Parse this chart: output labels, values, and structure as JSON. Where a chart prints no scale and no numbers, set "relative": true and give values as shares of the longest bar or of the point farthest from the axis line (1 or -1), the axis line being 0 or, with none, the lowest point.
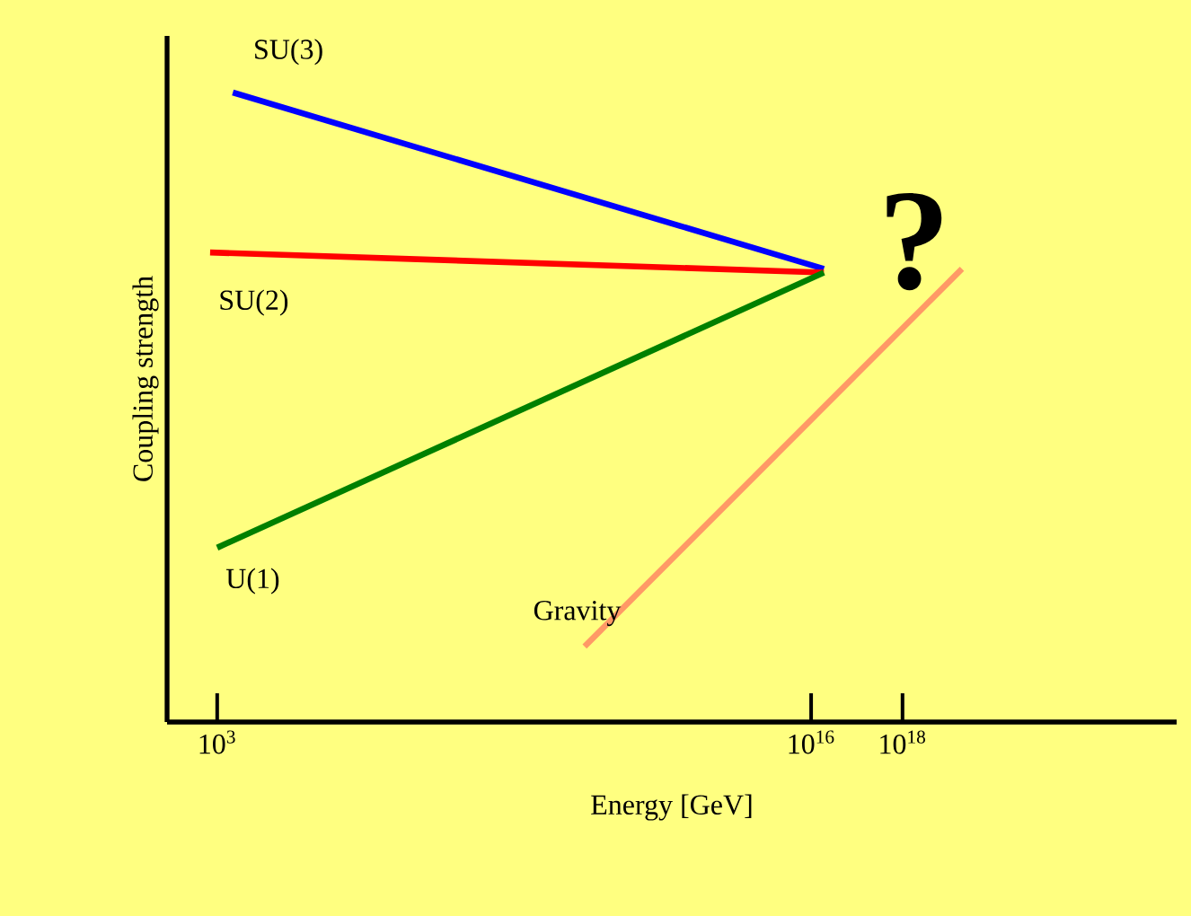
{
  "chart_data": {
    "type": "line",
    "relative": true,
    "xlabel": "Energy [GeV]",
    "ylabel": "Coupling strength",
    "log": "x",
    "xlim": [
      80,
      1e+24
    ],
    "xticks": [
      {
        "value": 1000,
        "label": "10$^{3}$"
      },
      {
        "value": 1e+16,
        "label": "10$^{16}$"
      },
      {
        "value": 1e+18,
        "label": "10$^{18}$"
      }
    ],
    "series": [
      {
        "name": "SU(3)",
        "color": "#0000ff",
        "x": [
          2200,
          1.9e+16
        ],
        "values": [
          1,
          0.72
        ]
      },
      {
        "name": "SU(2)",
        "color": "#ff0000",
        "x": [
          700,
          1.9e+16
        ],
        "values": [
          0.746,
          0.714
        ]
      },
      {
        "name": "U(1)",
        "color": "#008000",
        "x": [
          1000,
          1.9e+16
        ],
        "values": [
          0.277,
          0.714
        ]
      },
      {
        "name": "Gravity",
        "color": "#ff9966",
        "x": [
          110000000000.0,
          2e+19
        ],
        "values": [
          0.12,
          0.72
        ]
      }
    ],
    "annotations": [
      "?"
    ],
    "grid": false,
    "marker": "none",
    "line_style": "solid"
  }
}
